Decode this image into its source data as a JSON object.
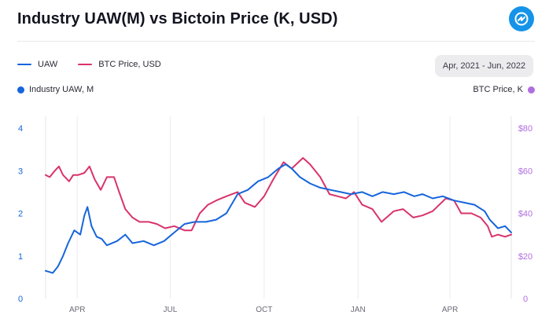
{
  "header": {
    "title": "Industry UAW(M) vs Bictoin Price (K, USD)"
  },
  "date_range": {
    "label": "Apr, 2021 - Jun, 2022"
  },
  "colors": {
    "uaw": "#1665db",
    "btc": "#d9336a",
    "left_axis": "#1665db",
    "right_axis": "#b06ee0"
  },
  "chart_data": {
    "type": "line",
    "title": "Industry UAW(M) vs Bictoin Price (K, USD)",
    "legend": [
      "UAW",
      "BTC Price, USD"
    ],
    "legend_position": "top-left",
    "grid": {
      "vertical": true,
      "horizontal": false
    },
    "left_axis": {
      "label": "Industry UAW, M",
      "range": [
        0,
        4
      ],
      "ticks": [
        "0",
        "1",
        "2",
        "3",
        "4"
      ]
    },
    "right_axis": {
      "label": "BTC Price, K",
      "range": [
        0,
        80
      ],
      "ticks": [
        "0",
        "$20",
        "$40",
        "$60",
        "$80"
      ]
    },
    "x_axis": {
      "range": [
        "2021-03-01",
        "2022-05-31"
      ],
      "ticks": [
        "APR",
        "JUL",
        "OCT",
        "JAN",
        "APR"
      ],
      "tick_dates": [
        "2021-04-01",
        "2021-07-01",
        "2021-10-01",
        "2022-01-01",
        "2022-04-01"
      ]
    },
    "series": [
      {
        "name": "UAW",
        "axis": "left",
        "points": [
          [
            "2021-03-01",
            0.65
          ],
          [
            "2021-03-08",
            0.6
          ],
          [
            "2021-03-13",
            0.75
          ],
          [
            "2021-03-18",
            1.0
          ],
          [
            "2021-03-23",
            1.3
          ],
          [
            "2021-03-29",
            1.6
          ],
          [
            "2021-04-04",
            1.5
          ],
          [
            "2021-04-08",
            1.95
          ],
          [
            "2021-04-11",
            2.15
          ],
          [
            "2021-04-15",
            1.7
          ],
          [
            "2021-04-20",
            1.45
          ],
          [
            "2021-04-25",
            1.4
          ],
          [
            "2021-04-30",
            1.25
          ],
          [
            "2021-05-10",
            1.35
          ],
          [
            "2021-05-18",
            1.5
          ],
          [
            "2021-05-25",
            1.3
          ],
          [
            "2021-06-05",
            1.35
          ],
          [
            "2021-06-15",
            1.25
          ],
          [
            "2021-06-25",
            1.35
          ],
          [
            "2021-07-05",
            1.55
          ],
          [
            "2021-07-15",
            1.75
          ],
          [
            "2021-07-25",
            1.8
          ],
          [
            "2021-08-05",
            1.8
          ],
          [
            "2021-08-15",
            1.85
          ],
          [
            "2021-08-25",
            2.0
          ],
          [
            "2021-09-05",
            2.45
          ],
          [
            "2021-09-15",
            2.55
          ],
          [
            "2021-09-25",
            2.75
          ],
          [
            "2021-10-05",
            2.85
          ],
          [
            "2021-10-15",
            3.05
          ],
          [
            "2021-10-22",
            3.15
          ],
          [
            "2021-10-28",
            3.05
          ],
          [
            "2021-11-05",
            2.85
          ],
          [
            "2021-11-15",
            2.7
          ],
          [
            "2021-11-25",
            2.6
          ],
          [
            "2021-12-05",
            2.55
          ],
          [
            "2021-12-15",
            2.5
          ],
          [
            "2021-12-25",
            2.45
          ],
          [
            "2022-01-05",
            2.5
          ],
          [
            "2022-01-15",
            2.4
          ],
          [
            "2022-01-25",
            2.5
          ],
          [
            "2022-02-05",
            2.45
          ],
          [
            "2022-02-15",
            2.5
          ],
          [
            "2022-02-25",
            2.4
          ],
          [
            "2022-03-05",
            2.45
          ],
          [
            "2022-03-15",
            2.35
          ],
          [
            "2022-03-25",
            2.4
          ],
          [
            "2022-04-05",
            2.3
          ],
          [
            "2022-04-15",
            2.25
          ],
          [
            "2022-04-25",
            2.2
          ],
          [
            "2022-05-05",
            2.05
          ],
          [
            "2022-05-10",
            1.85
          ],
          [
            "2022-05-18",
            1.65
          ],
          [
            "2022-05-25",
            1.7
          ],
          [
            "2022-05-31",
            1.55
          ]
        ]
      },
      {
        "name": "BTC Price, USD",
        "axis": "right",
        "points": [
          [
            "2021-03-01",
            58
          ],
          [
            "2021-03-05",
            57
          ],
          [
            "2021-03-10",
            60
          ],
          [
            "2021-03-14",
            62
          ],
          [
            "2021-03-18",
            58
          ],
          [
            "2021-03-24",
            55
          ],
          [
            "2021-03-28",
            58
          ],
          [
            "2021-04-02",
            58
          ],
          [
            "2021-04-08",
            59
          ],
          [
            "2021-04-13",
            62
          ],
          [
            "2021-04-18",
            56
          ],
          [
            "2021-04-24",
            51
          ],
          [
            "2021-04-30",
            57
          ],
          [
            "2021-05-07",
            57
          ],
          [
            "2021-05-12",
            50
          ],
          [
            "2021-05-18",
            42
          ],
          [
            "2021-05-25",
            38
          ],
          [
            "2021-06-01",
            36
          ],
          [
            "2021-06-10",
            36
          ],
          [
            "2021-06-18",
            35
          ],
          [
            "2021-06-26",
            33
          ],
          [
            "2021-07-05",
            34
          ],
          [
            "2021-07-15",
            32
          ],
          [
            "2021-07-22",
            32
          ],
          [
            "2021-07-30",
            40
          ],
          [
            "2021-08-07",
            44
          ],
          [
            "2021-08-15",
            46
          ],
          [
            "2021-08-25",
            48
          ],
          [
            "2021-09-05",
            50
          ],
          [
            "2021-09-12",
            45
          ],
          [
            "2021-09-22",
            43
          ],
          [
            "2021-10-01",
            48
          ],
          [
            "2021-10-10",
            56
          ],
          [
            "2021-10-20",
            64
          ],
          [
            "2021-10-28",
            61
          ],
          [
            "2021-11-08",
            66
          ],
          [
            "2021-11-15",
            63
          ],
          [
            "2021-11-25",
            57
          ],
          [
            "2021-12-04",
            49
          ],
          [
            "2021-12-12",
            48
          ],
          [
            "2021-12-20",
            47
          ],
          [
            "2021-12-28",
            50
          ],
          [
            "2022-01-05",
            44
          ],
          [
            "2022-01-15",
            42
          ],
          [
            "2022-01-24",
            36
          ],
          [
            "2022-02-05",
            41
          ],
          [
            "2022-02-14",
            42
          ],
          [
            "2022-02-24",
            38
          ],
          [
            "2022-03-05",
            39
          ],
          [
            "2022-03-15",
            41
          ],
          [
            "2022-03-28",
            47
          ],
          [
            "2022-04-05",
            46
          ],
          [
            "2022-04-12",
            40
          ],
          [
            "2022-04-22",
            40
          ],
          [
            "2022-05-01",
            38
          ],
          [
            "2022-05-08",
            34
          ],
          [
            "2022-05-12",
            29
          ],
          [
            "2022-05-18",
            30
          ],
          [
            "2022-05-25",
            29
          ],
          [
            "2022-05-31",
            30
          ]
        ]
      }
    ]
  }
}
